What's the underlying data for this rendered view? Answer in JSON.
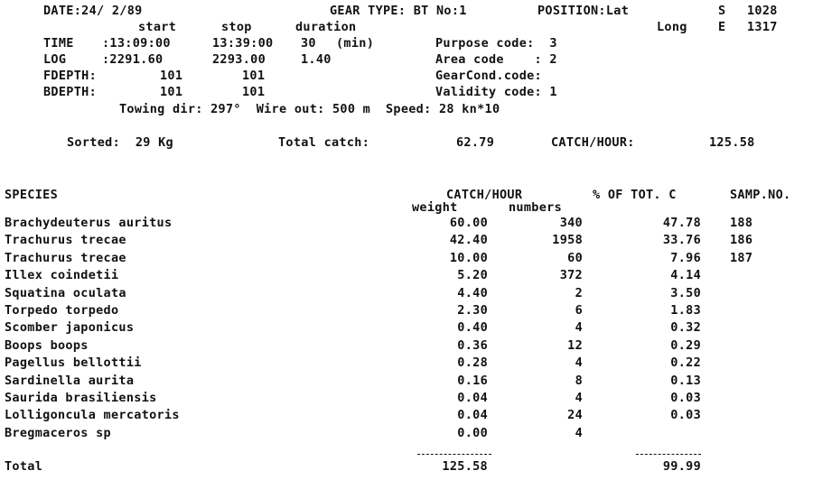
{
  "header": {
    "date": "DATE:24/ 2/89",
    "gear_type": "GEAR TYPE: BT No:1",
    "position_label": "POSITION:Lat",
    "lat_hemi": "S",
    "lat_value": "1028",
    "long_label": "Long",
    "long_hemi": "E",
    "long_value": "1317",
    "col_start": "start",
    "col_stop": "stop",
    "col_duration": "duration",
    "time_label": "TIME",
    "time_start": ":13:09:00",
    "time_stop": "13:39:00",
    "time_duration": "30",
    "time_unit": "(min)",
    "log_label": "LOG",
    "log_start": ":2291.60",
    "log_stop": "2293.00",
    "log_duration": "1.40",
    "fdepth_label": "FDEPTH:",
    "fdepth_start": "101",
    "fdepth_stop": "101",
    "bdepth_label": "BDEPTH:",
    "bdepth_start": "101",
    "bdepth_stop": "101",
    "purpose_code": "Purpose code:  3",
    "area_code": "Area code    : 2",
    "gearcond_code": "GearCond.code:",
    "validity_code": "Validity code: 1",
    "towing": "Towing dir: 297°  Wire out: 500 m  Speed: 28 kn*10"
  },
  "summary": {
    "sorted": "Sorted:  29 Kg",
    "total_catch_label": "Total catch:",
    "total_catch": "62.79",
    "catch_hour_label": "CATCH/HOUR:",
    "catch_hour": "125.58"
  },
  "table": {
    "col_species": "SPECIES",
    "col_catch_hour": "CATCH/HOUR",
    "col_weight": "weight",
    "col_numbers": "numbers",
    "col_pct": "% OF TOT. C",
    "col_samp": "SAMP.NO.",
    "rows": [
      {
        "species": "Brachydeuterus auritus",
        "weight": "60.00",
        "numbers": "340",
        "pct": "47.78",
        "samp": "188"
      },
      {
        "species": "Trachurus trecae",
        "weight": "42.40",
        "numbers": "1958",
        "pct": "33.76",
        "samp": "186"
      },
      {
        "species": "Trachurus trecae",
        "weight": "10.00",
        "numbers": "60",
        "pct": "7.96",
        "samp": "187"
      },
      {
        "species": "Illex coindetii",
        "weight": "5.20",
        "numbers": "372",
        "pct": "4.14",
        "samp": ""
      },
      {
        "species": "Squatina oculata",
        "weight": "4.40",
        "numbers": "2",
        "pct": "3.50",
        "samp": ""
      },
      {
        "species": "Torpedo torpedo",
        "weight": "2.30",
        "numbers": "6",
        "pct": "1.83",
        "samp": ""
      },
      {
        "species": "Scomber japonicus",
        "weight": "0.40",
        "numbers": "4",
        "pct": "0.32",
        "samp": ""
      },
      {
        "species": "Boops boops",
        "weight": "0.36",
        "numbers": "12",
        "pct": "0.29",
        "samp": ""
      },
      {
        "species": "Pagellus bellottii",
        "weight": "0.28",
        "numbers": "4",
        "pct": "0.22",
        "samp": ""
      },
      {
        "species": "Sardinella aurita",
        "weight": "0.16",
        "numbers": "8",
        "pct": "0.13",
        "samp": ""
      },
      {
        "species": "Saurida brasiliensis",
        "weight": "0.04",
        "numbers": "4",
        "pct": "0.03",
        "samp": ""
      },
      {
        "species": "Lolligoncula mercatoris",
        "weight": "0.04",
        "numbers": "24",
        "pct": "0.03",
        "samp": ""
      },
      {
        "species": "Bregmaceros sp",
        "weight": "0.00",
        "numbers": "4",
        "pct": "",
        "samp": ""
      }
    ],
    "total_label": "Total",
    "total_weight": "125.58",
    "total_pct": "99.99"
  }
}
